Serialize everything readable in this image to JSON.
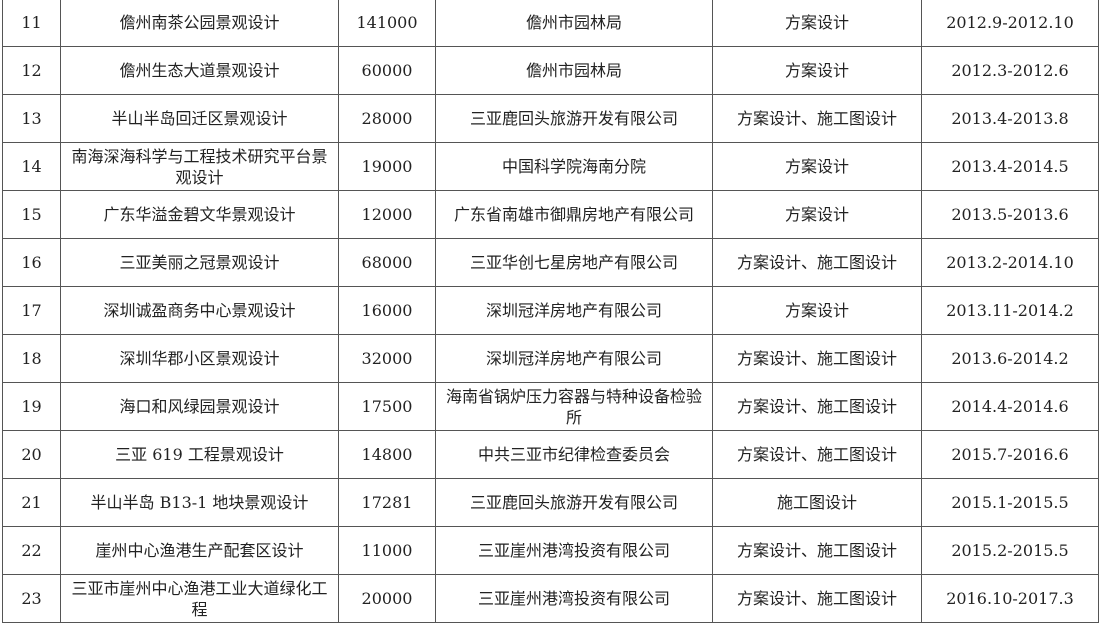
{
  "rows": [
    {
      "no": "11",
      "name": "儋州南茶公园景观设计",
      "area": "141000",
      "client": "儋州市园林局",
      "scope": "方案设计",
      "period": "2012.9-2012.10"
    },
    {
      "no": "12",
      "name": "儋州生态大道景观设计",
      "area": "60000",
      "client": "儋州市园林局",
      "scope": "方案设计",
      "period": "2012.3-2012.6"
    },
    {
      "no": "13",
      "name": "半山半岛回迁区景观设计",
      "area": "28000",
      "client": "三亚鹿回头旅游开发有限公司",
      "scope": "方案设计、施工图设计",
      "period": "2013.4-2013.8"
    },
    {
      "no": "14",
      "name": "南海深海科学与工程技术研究平台景观设计",
      "area": "19000",
      "client": "中国科学院海南分院",
      "scope": "方案设计",
      "period": "2013.4-2014.5"
    },
    {
      "no": "15",
      "name": "广东华溢金碧文华景观设计",
      "area": "12000",
      "client": "广东省南雄市御鼎房地产有限公司",
      "scope": "方案设计",
      "period": "2013.5-2013.6"
    },
    {
      "no": "16",
      "name": "三亚美丽之冠景观设计",
      "area": "68000",
      "client": "三亚华创七星房地产有限公司",
      "scope": "方案设计、施工图设计",
      "period": "2013.2-2014.10"
    },
    {
      "no": "17",
      "name": "深圳诚盈商务中心景观设计",
      "area": "16000",
      "client": "深圳冠洋房地产有限公司",
      "scope": "方案设计",
      "period": "2013.11-2014.2"
    },
    {
      "no": "18",
      "name": "深圳华郡小区景观设计",
      "area": "32000",
      "client": "深圳冠洋房地产有限公司",
      "scope": "方案设计、施工图设计",
      "period": "2013.6-2014.2"
    },
    {
      "no": "19",
      "name": "海口和风绿园景观设计",
      "area": "17500",
      "client": "海南省锅炉压力容器与特种设备检验所",
      "scope": "方案设计、施工图设计",
      "period": "2014.4-2014.6"
    },
    {
      "no": "20",
      "name": "三亚 619 工程景观设计",
      "area": "14800",
      "client": "中共三亚市纪律检查委员会",
      "scope": "方案设计、施工图设计",
      "period": "2015.7-2016.6"
    },
    {
      "no": "21",
      "name": "半山半岛 B13-1 地块景观设计",
      "area": "17281",
      "client": "三亚鹿回头旅游开发有限公司",
      "scope": "施工图设计",
      "period": "2015.1-2015.5"
    },
    {
      "no": "22",
      "name": "崖州中心渔港生产配套区设计",
      "area": "11000",
      "client": "三亚崖州港湾投资有限公司",
      "scope": "方案设计、施工图设计",
      "period": "2015.2-2015.5"
    },
    {
      "no": "23",
      "name": "三亚市崖州中心渔港工业大道绿化工程",
      "area": "20000",
      "client": "三亚崖州港湾投资有限公司",
      "scope": "方案设计、施工图设计",
      "period": "2016.10-2017.3"
    }
  ]
}
